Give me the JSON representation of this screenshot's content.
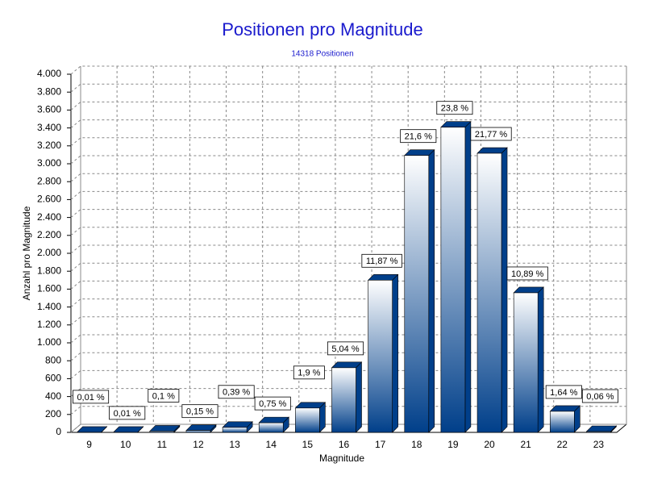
{
  "chart_data": {
    "type": "bar3d",
    "title": "Positionen pro Magnitude",
    "subtitle": "14318 Positionen",
    "x_label": "Magnitude",
    "y_label": "Anzahl pro Magnitude",
    "categories": [
      "9",
      "10",
      "11",
      "12",
      "13",
      "14",
      "15",
      "16",
      "17",
      "18",
      "19",
      "20",
      "21",
      "22",
      "23"
    ],
    "values": [
      1,
      1,
      14,
      21,
      56,
      107,
      272,
      722,
      1700,
      3093,
      3408,
      3117,
      1559,
      235,
      9
    ],
    "shares": [
      0.01,
      0.01,
      0.1,
      0.15,
      0.39,
      0.75,
      1.9,
      5.04,
      11.87,
      21.6,
      23.8,
      21.77,
      10.89,
      1.64,
      0.06
    ],
    "share_labels": [
      "0,01 %",
      "0,01 %",
      "0,1 %",
      "0,15 %",
      "0,39 %",
      "0,75 %",
      "1,9 %",
      "5,04 %",
      "11,87 %",
      "21,6 %",
      "23,8 %",
      "21,77 %",
      "10,89 %",
      "1,64 %",
      "0,06 %"
    ],
    "color": "#003f8a",
    "ylim": [
      0,
      4000
    ],
    "yticks": [
      0,
      200,
      400,
      600,
      800,
      {
        "value": 1000,
        "label": "1.000"
      },
      {
        "value": 1200,
        "label": "1.200"
      },
      {
        "value": 1400,
        "label": "1.400"
      },
      {
        "value": 1600,
        "label": "1.600"
      },
      {
        "value": 1800,
        "label": "1.800"
      },
      {
        "value": 2000,
        "label": "2.000"
      },
      {
        "value": 2200,
        "label": "2.200"
      },
      {
        "value": 2400,
        "label": "2.400"
      },
      {
        "value": 2600,
        "label": "2.600"
      },
      {
        "value": 2800,
        "label": "2.800"
      },
      {
        "value": 3000,
        "label": "3.000"
      },
      {
        "value": 3200,
        "label": "3.200"
      },
      {
        "value": 3400,
        "label": "3.400"
      },
      {
        "value": 3600,
        "label": "3.600"
      },
      {
        "value": 3800,
        "label": "3.800"
      },
      {
        "value": 4000,
        "label": "4.000"
      }
    ],
    "grid": true
  }
}
